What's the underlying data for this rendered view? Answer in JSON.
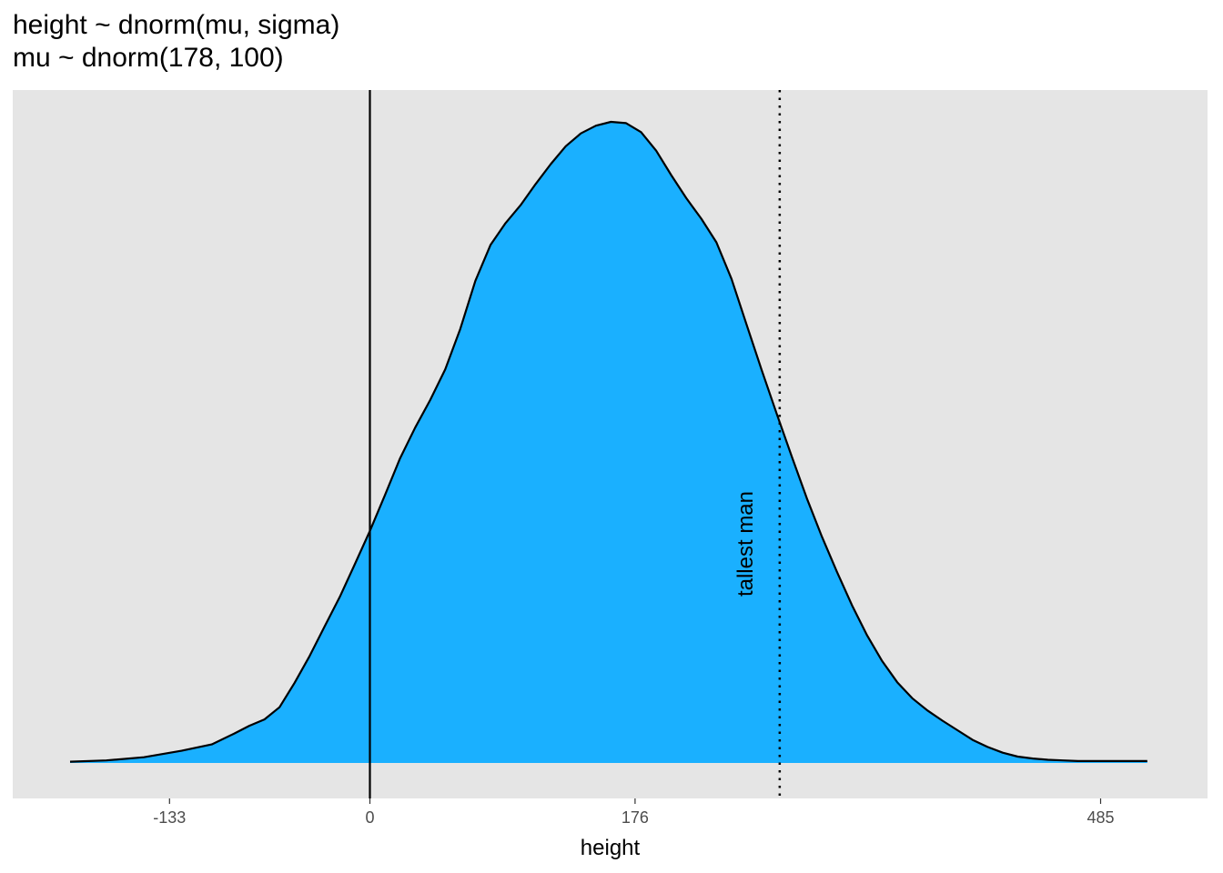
{
  "chart_data": {
    "type": "area",
    "title": "height ~ dnorm(mu, sigma)",
    "subtitle": "mu ~ dnorm(178, 100)",
    "xlabel": "height",
    "ylabel": "",
    "xlim": [
      -190,
      525
    ],
    "ylim": [
      0,
      1.0
    ],
    "xticks": [
      -133,
      0,
      176,
      485
    ],
    "y_axis_shown": false,
    "grid": false,
    "panel_background": "#e5e5e5",
    "fill_color": "#1ab0ff",
    "line_color": "#000000",
    "series": [
      {
        "x": [
          -199,
          -175,
          -150,
          -125,
          -105,
          -90,
          -80,
          -70,
          -60,
          -50,
          -40,
          -30,
          -20,
          -10,
          0,
          10,
          20,
          30,
          40,
          50,
          60,
          70,
          80,
          90,
          100,
          110,
          120,
          130,
          140,
          150,
          160,
          170,
          180,
          190,
          200,
          210,
          220,
          230,
          240,
          250,
          260,
          270,
          280,
          290,
          300,
          310,
          320,
          330,
          340,
          350,
          360,
          370,
          380,
          390,
          400,
          410,
          420,
          430,
          440,
          450,
          460,
          470,
          480,
          490,
          500,
          516
        ],
        "y": [
          0.002,
          0.004,
          0.009,
          0.019,
          0.029,
          0.046,
          0.058,
          0.068,
          0.087,
          0.125,
          0.167,
          0.213,
          0.259,
          0.31,
          0.362,
          0.418,
          0.475,
          0.523,
          0.566,
          0.614,
          0.677,
          0.752,
          0.808,
          0.842,
          0.87,
          0.903,
          0.934,
          0.962,
          0.982,
          0.994,
          1.0,
          0.998,
          0.984,
          0.955,
          0.917,
          0.881,
          0.849,
          0.812,
          0.755,
          0.684,
          0.613,
          0.545,
          0.478,
          0.413,
          0.353,
          0.298,
          0.246,
          0.199,
          0.159,
          0.126,
          0.101,
          0.082,
          0.066,
          0.051,
          0.036,
          0.025,
          0.016,
          0.01,
          0.007,
          0.005,
          0.004,
          0.003,
          0.003,
          0.003,
          0.003,
          0.003
        ]
      }
    ],
    "vlines": [
      {
        "x": 0,
        "style": "solid"
      },
      {
        "x": 272,
        "style": "dotted",
        "label": "tallest man"
      }
    ]
  }
}
